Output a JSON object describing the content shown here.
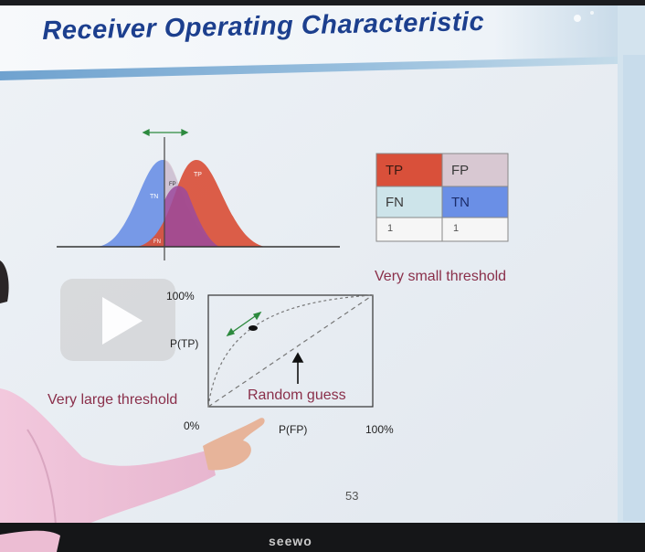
{
  "slide": {
    "title": "Receiver Operating Characteristic",
    "page_number": "53"
  },
  "distribution": {
    "tn_label": "TN",
    "tp_label": "TP",
    "fp_label": "FP",
    "fn_label": "FN"
  },
  "confusion_table": {
    "tp": "TP",
    "fp": "FP",
    "fn": "FN",
    "tn": "TN",
    "row3_col1": "1",
    "row3_col2": "1"
  },
  "roc": {
    "y_max_label": "100%",
    "y_label": "P(TP)",
    "origin_label": "0%",
    "x_label": "P(FP)",
    "x_max_label": "100%",
    "random_guess": "Random guess",
    "very_small": "Very small threshold",
    "very_large": "Very large threshold"
  },
  "monitor": {
    "brand": "seewo"
  },
  "colors": {
    "title_blue": "#1c3f8e",
    "tp_red": "#d9503a",
    "tn_blue": "#6a8fe6",
    "fn_light": "#cde4ea",
    "fp_grey": "#d8c8d2",
    "overlap_purple": "#9b4a9c",
    "maroon_text": "#8a2f4a"
  },
  "icons": [
    "play-icon",
    "double-arrow-icon",
    "up-arrow-icon"
  ]
}
